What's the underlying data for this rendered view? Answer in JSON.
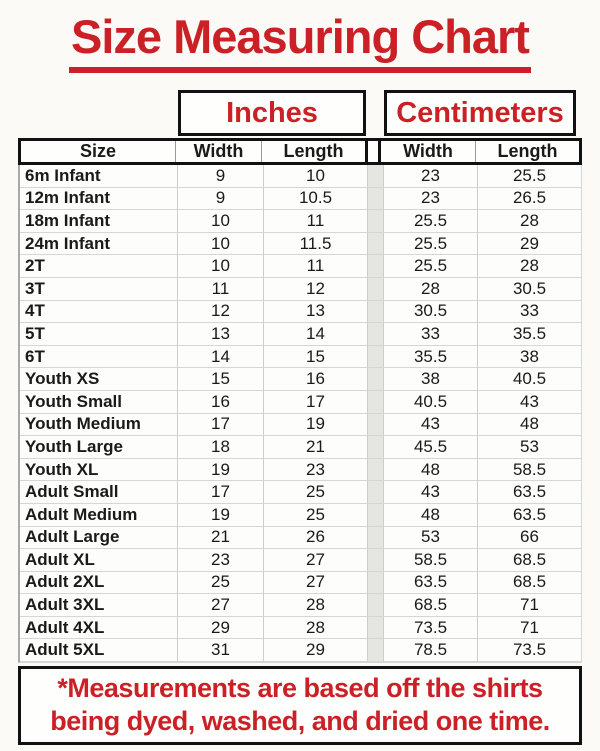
{
  "page": {
    "title": "Size Measuring Chart",
    "footnote_line1": "*Measurements are based off the shirts",
    "footnote_line2": "being dyed, washed, and dried one time."
  },
  "unit_headers": {
    "inches": "Inches",
    "centimeters": "Centimeters"
  },
  "table": {
    "headers": [
      "Size",
      "Width",
      "Length",
      "Width",
      "Length"
    ]
  },
  "colors": {
    "page_bg": "#fbfaf7",
    "accent_red": "#cb2026",
    "border_black": "#111111",
    "grid_line": "#d6d6d3",
    "outer_grid": "#a9a9a7",
    "spacer_fill": "#e5e5e2",
    "text_black": "#1a1a1a"
  },
  "chart_data": {
    "type": "table",
    "title": "Size Measuring Chart",
    "column_groups": [
      {
        "label": "Inches",
        "columns": [
          "Width",
          "Length"
        ]
      },
      {
        "label": "Centimeters",
        "columns": [
          "Width",
          "Length"
        ]
      }
    ],
    "columns": [
      "Size",
      "Width (inches)",
      "Length (inches)",
      "Width (centimeters)",
      "Length (centimeters)"
    ],
    "rows": [
      [
        "6m Infant",
        9,
        10,
        23,
        25.5
      ],
      [
        "12m Infant",
        9,
        10.5,
        23,
        26.5
      ],
      [
        "18m Infant",
        10,
        11,
        25.5,
        28
      ],
      [
        "24m Infant",
        10,
        11.5,
        25.5,
        29
      ],
      [
        "2T",
        10,
        11,
        25.5,
        28
      ],
      [
        "3T",
        11,
        12,
        28,
        30.5
      ],
      [
        "4T",
        12,
        13,
        30.5,
        33
      ],
      [
        "5T",
        13,
        14,
        33,
        35.5
      ],
      [
        "6T",
        14,
        15,
        35.5,
        38
      ],
      [
        "Youth XS",
        15,
        16,
        38,
        40.5
      ],
      [
        "Youth Small",
        16,
        17,
        40.5,
        43
      ],
      [
        "Youth Medium",
        17,
        19,
        43,
        48
      ],
      [
        "Youth Large",
        18,
        21,
        45.5,
        53
      ],
      [
        "Youth XL",
        19,
        23,
        48,
        58.5
      ],
      [
        "Adult Small",
        17,
        25,
        43,
        63.5
      ],
      [
        "Adult Medium",
        19,
        25,
        48,
        63.5
      ],
      [
        "Adult Large",
        21,
        26,
        53,
        66
      ],
      [
        "Adult XL",
        23,
        27,
        58.5,
        68.5
      ],
      [
        "Adult 2XL",
        25,
        27,
        63.5,
        68.5
      ],
      [
        "Adult 3XL",
        27,
        28,
        68.5,
        71
      ],
      [
        "Adult 4XL",
        29,
        28,
        73.5,
        71
      ],
      [
        "Adult 5XL",
        31,
        29,
        78.5,
        73.5
      ]
    ],
    "footnote": "*Measurements are based off the shirts being dyed, washed, and dried one time."
  }
}
